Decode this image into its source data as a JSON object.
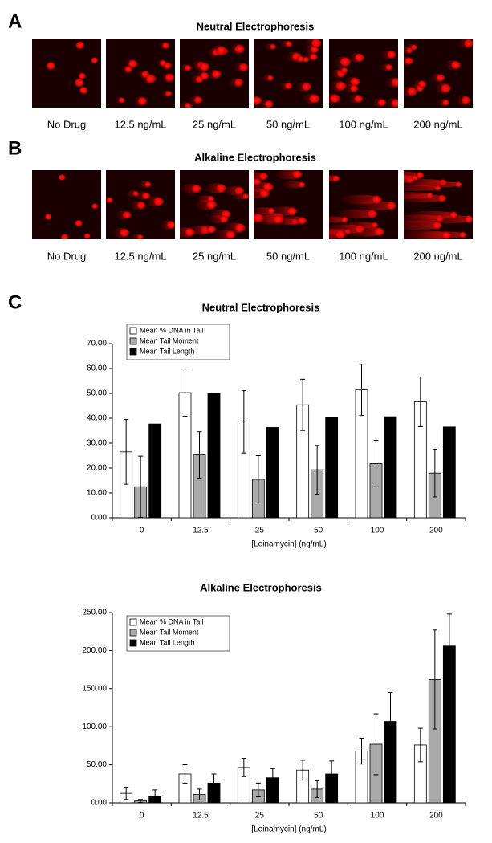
{
  "panels": [
    {
      "label": "A",
      "title": "Neutral Electrophoresis",
      "captions": [
        "No Drug",
        "12.5 ng/mL",
        "25 ng/mL",
        "50 ng/mL",
        "100 ng/mL",
        "200 ng/mL"
      ]
    },
    {
      "label": "B",
      "title": "Alkaline Electrophoresis",
      "captions": [
        "No Drug",
        "12.5 ng/mL",
        "25 ng/mL",
        "50 ng/mL",
        "100 ng/mL",
        "200 ng/mL"
      ]
    }
  ],
  "panel_c_label": "C",
  "chart_data": [
    {
      "type": "bar",
      "title": "Neutral Electrophoresis",
      "x_label": "[Leinamycin] (ng/mL)",
      "categories": [
        "0",
        "12.5",
        "25",
        "50",
        "100",
        "200"
      ],
      "series": [
        {
          "name": "Mean % DNA in Tail",
          "color": "#ffffff",
          "values": [
            26.5,
            50.3,
            38.6,
            45.4,
            51.4,
            46.6
          ],
          "errors": [
            13,
            9.5,
            12.5,
            10.3,
            10.3,
            10
          ]
        },
        {
          "name": "Mean Tail Moment",
          "color": "#aaaaaa",
          "values": [
            12.5,
            25.3,
            15.5,
            19.3,
            21.8,
            18
          ],
          "errors": [
            12.3,
            9.3,
            9.5,
            9.8,
            9.3,
            9.6
          ]
        },
        {
          "name": "Mean Tail Length",
          "color": "#000000",
          "values": [
            37.7,
            50.0,
            36.3,
            40.2,
            40.6,
            36.5
          ]
        }
      ],
      "ylim": [
        0,
        70
      ],
      "yticks": [
        {
          "value": 0,
          "label": "0.00"
        },
        {
          "value": 10,
          "label": "10.00"
        },
        {
          "value": 20,
          "label": "20.00"
        },
        {
          "value": 30,
          "label": "30.00"
        },
        {
          "value": 40,
          "label": "40.00"
        },
        {
          "value": 50,
          "label": "50.00"
        },
        {
          "value": 60,
          "label": "60.00"
        },
        {
          "value": 70,
          "label": "70.00"
        }
      ],
      "legend": "upper left"
    },
    {
      "type": "bar",
      "title": "Alkaline Electrophoresis",
      "x_label": "[Leinamycin] (ng/mL)",
      "categories": [
        "0",
        "12.5",
        "25",
        "50",
        "100",
        "200"
      ],
      "series": [
        {
          "name": "Mean % DNA in Tail",
          "color": "#ffffff",
          "values": [
            12.5,
            38,
            46.5,
            43,
            68,
            76
          ],
          "errors": [
            8,
            12,
            12,
            13,
            17,
            22
          ]
        },
        {
          "name": "Mean Tail Moment",
          "color": "#aaaaaa",
          "values": [
            2.5,
            11,
            17,
            18,
            77,
            162
          ],
          "errors": [
            2,
            7,
            9,
            11,
            40,
            65
          ]
        },
        {
          "name": "Mean Tail Length",
          "color": "#000000",
          "values": [
            9,
            26,
            33,
            38,
            107,
            206
          ],
          "errors": [
            8,
            12,
            12,
            17,
            38,
            42
          ]
        }
      ],
      "ylim": [
        0,
        250
      ],
      "yticks": [
        {
          "value": 0,
          "label": "0.00"
        },
        {
          "value": 50,
          "label": "50.00"
        },
        {
          "value": 100,
          "label": "100.00"
        },
        {
          "value": 150,
          "label": "150.00"
        },
        {
          "value": 200,
          "label": "200.00"
        },
        {
          "value": 250,
          "label": "250.00"
        }
      ],
      "legend": "upper left"
    }
  ]
}
